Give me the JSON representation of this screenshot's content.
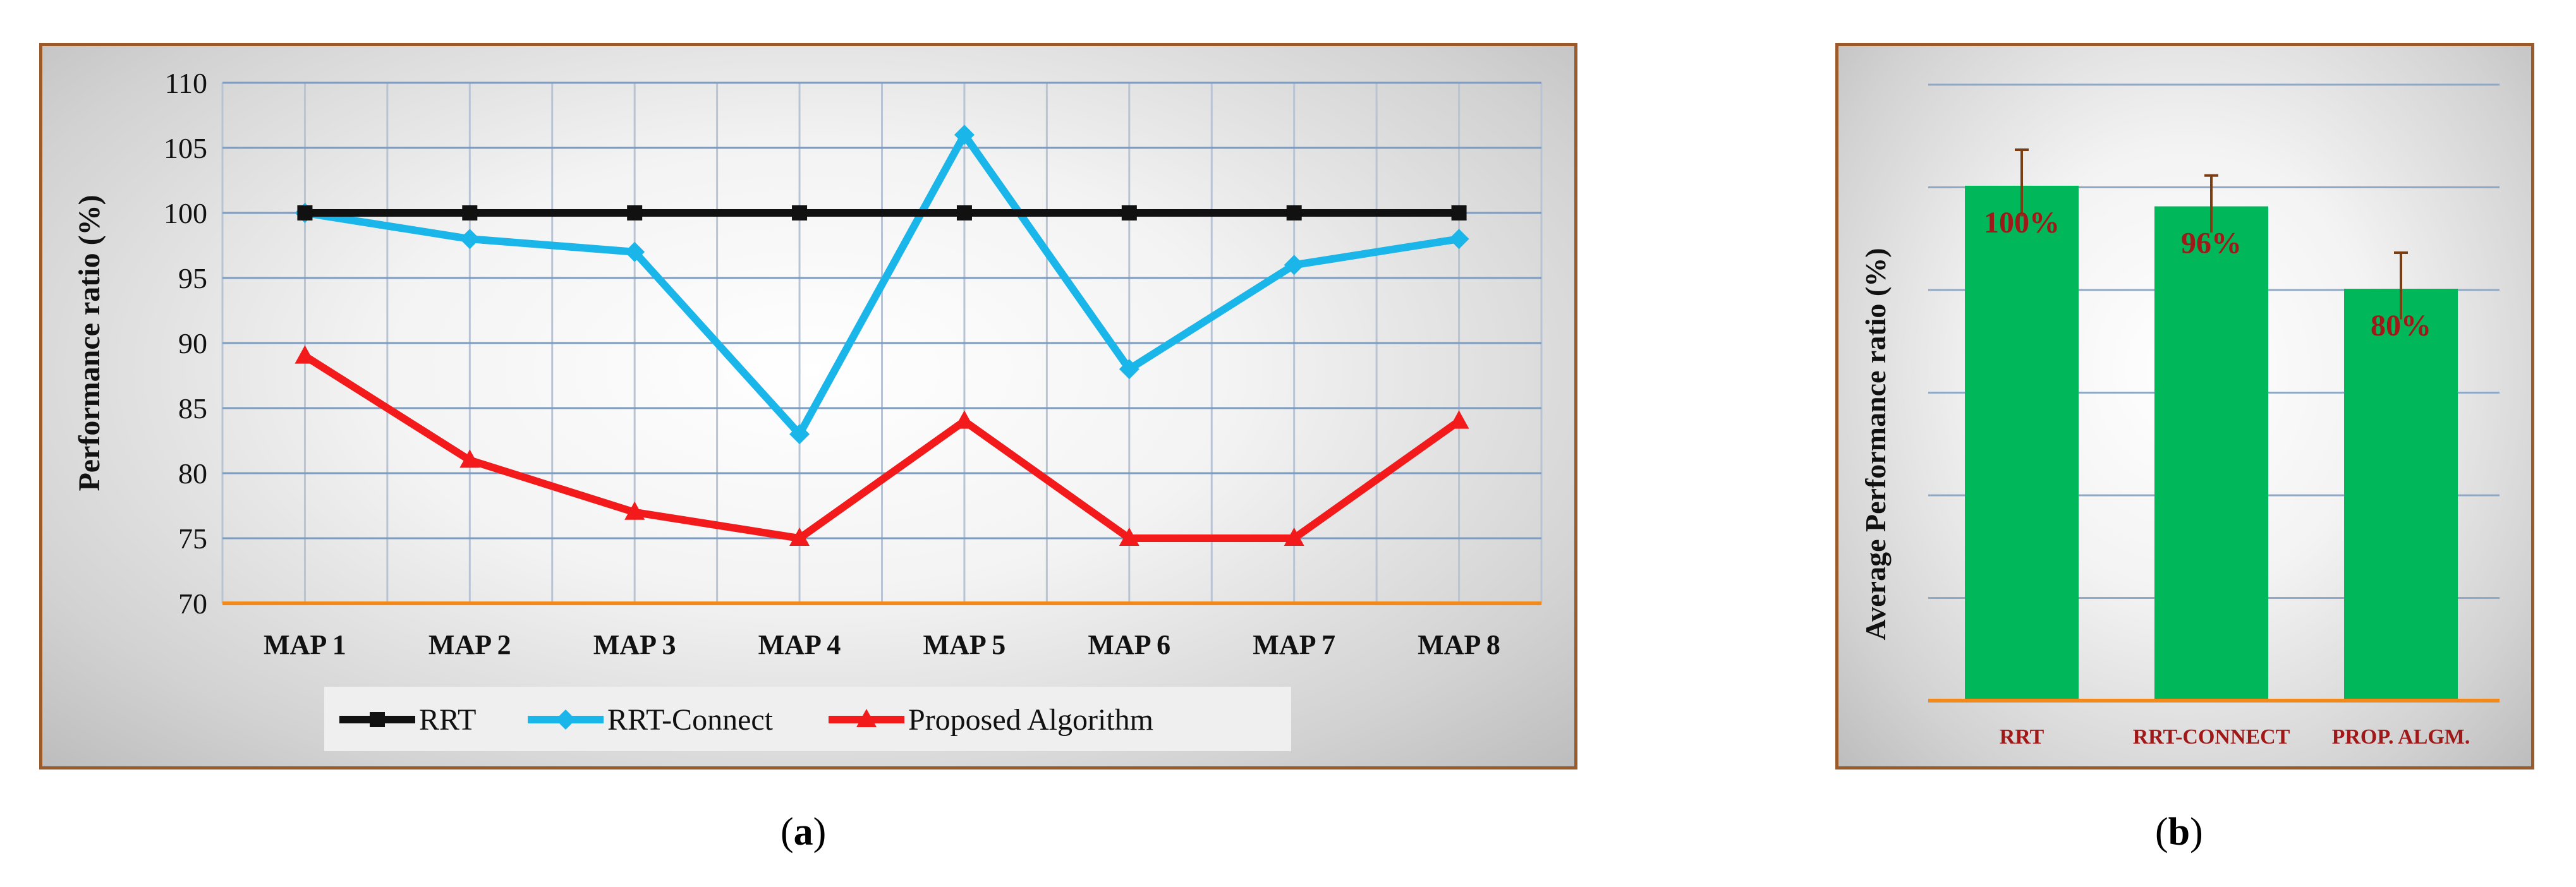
{
  "chart_data": [
    {
      "type": "line",
      "ylabel": "Performance ratio (%)",
      "categories": [
        "MAP 1",
        "MAP 2",
        "MAP 3",
        "MAP 4",
        "MAP 5",
        "MAP 6",
        "MAP 7",
        "MAP 8"
      ],
      "ylim": [
        70,
        110
      ],
      "yticks": [
        70,
        75,
        80,
        85,
        90,
        95,
        100,
        105,
        110
      ],
      "grid": true,
      "legend_position": "bottom",
      "series": [
        {
          "name": "RRT",
          "color": "#111111",
          "marker": "square",
          "values": [
            100,
            100,
            100,
            100,
            100,
            100,
            100,
            100
          ]
        },
        {
          "name": "RRT-Connect",
          "color": "#1ab6ea",
          "marker": "diamond",
          "values": [
            100,
            98,
            97,
            83,
            106,
            88,
            96,
            98
          ]
        },
        {
          "name": "Proposed Algorithm",
          "color": "#f21a1a",
          "marker": "triangle",
          "values": [
            89,
            81,
            77,
            75,
            84,
            75,
            75,
            84
          ]
        }
      ]
    },
    {
      "type": "bar",
      "ylabel": "Average Performance ratio (%)",
      "categories": [
        "RRT",
        "RRT-CONNECT",
        "PROP. ALGM."
      ],
      "values": [
        100,
        96,
        80
      ],
      "data_labels": [
        "100%",
        "96%",
        "80%"
      ],
      "error_bars": [
        7,
        6,
        7
      ],
      "ylim": [
        0,
        100
      ],
      "grid": true,
      "bar_color": "#00b75a",
      "label_color": "#a01818"
    }
  ],
  "captions": {
    "a_open": "(",
    "a_letter": "a",
    "a_close": ")",
    "b_open": "(",
    "b_letter": "b",
    "b_close": ")"
  }
}
